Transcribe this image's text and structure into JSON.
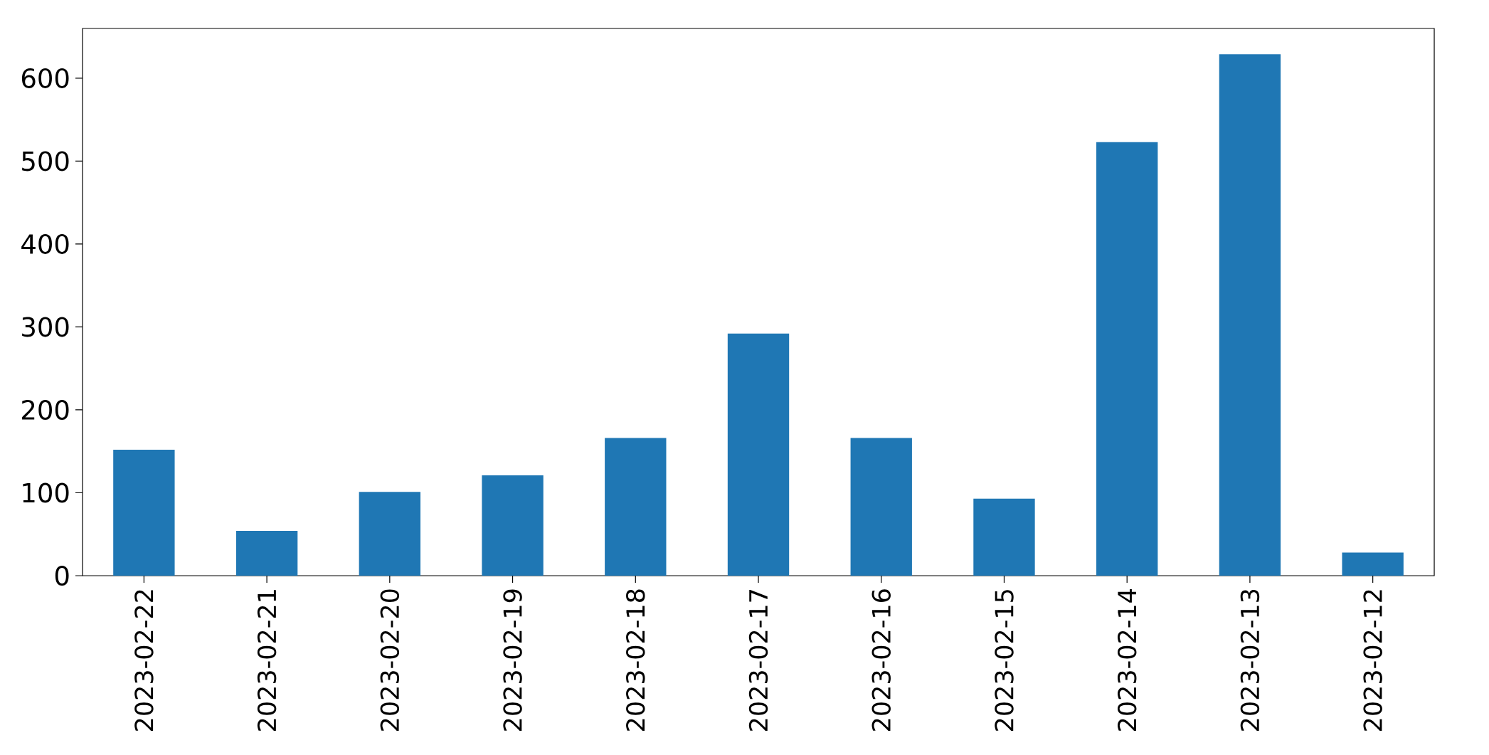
{
  "chart_data": {
    "type": "bar",
    "categories": [
      "2023-02-22",
      "2023-02-21",
      "2023-02-20",
      "2023-02-19",
      "2023-02-18",
      "2023-02-17",
      "2023-02-16",
      "2023-02-15",
      "2023-02-14",
      "2023-02-13",
      "2023-02-12"
    ],
    "values": [
      152,
      54,
      101,
      121,
      166,
      292,
      166,
      93,
      523,
      629,
      28
    ],
    "color": "#1f77b4",
    "ylim": [
      0,
      660
    ],
    "yticks": [
      0,
      100,
      200,
      300,
      400,
      500,
      600
    ],
    "grid": false
  }
}
